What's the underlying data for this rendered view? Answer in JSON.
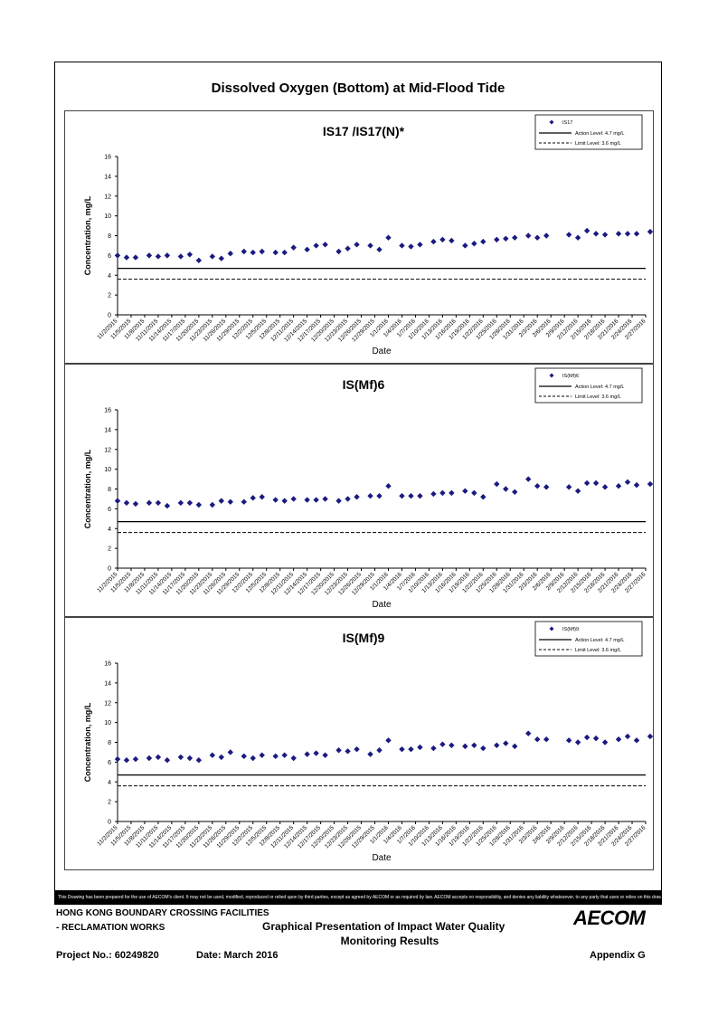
{
  "figure": {
    "title": "Dissolved Oxygen (Bottom) at Mid-Flood Tide",
    "disclaimer": "This Drawing has been prepared for the use of AECOM's client. It may not be used, modified, reproduced or relied upon by third parties, except as agreed by AECOM or as required by law. AECOM accepts no responsibility, and denies any liability whatsoever, to any party that uses or relies on this drawing without AECOM's express written consent."
  },
  "footer": {
    "line1": "HONG KONG BOUNDARY CROSSING FACILITIES",
    "line2": "- RECLAMATION WORKS",
    "heading1": "Graphical Presentation of Impact Water Quality",
    "heading2": "Monitoring Results",
    "project": "Project No.: 60249820",
    "date": "Date: March 2016",
    "appendix": "Appendix G",
    "logo": "AECOM"
  },
  "chart_data": [
    {
      "type": "scatter",
      "title": "IS17 /IS17(N)*",
      "xlabel": "Date",
      "ylabel": "Concentration, mg/L",
      "ylim": [
        0,
        16
      ],
      "yticks": [
        "0",
        "2",
        "4",
        "6",
        "8",
        "10",
        "12",
        "14",
        "16"
      ],
      "xticks": [
        "11/2/2015",
        "11/5/2015",
        "11/8/2015",
        "11/11/2015",
        "11/14/2015",
        "11/17/2015",
        "11/20/2015",
        "11/23/2015",
        "11/26/2015",
        "11/29/2015",
        "12/2/2015",
        "12/5/2015",
        "12/8/2015",
        "12/11/2015",
        "12/14/2015",
        "12/17/2015",
        "12/20/2015",
        "12/23/2015",
        "12/26/2015",
        "12/29/2015",
        "1/1/2016",
        "1/4/2016",
        "1/7/2016",
        "1/10/2016",
        "1/13/2016",
        "1/16/2016",
        "1/19/2016",
        "1/22/2016",
        "1/25/2016",
        "1/28/2016",
        "1/31/2016",
        "2/3/2016",
        "2/6/2016",
        "2/9/2016",
        "2/12/2016",
        "2/15/2016",
        "2/18/2016",
        "2/21/2016",
        "2/24/2016",
        "2/27/2016"
      ],
      "legend": [
        "IS17",
        "Action Level: 4.7 mg/L",
        "Limit Level: 3.6 mg/L"
      ],
      "action_level": 4.7,
      "limit_level": 3.6,
      "series": [
        {
          "name": "IS17",
          "x": [
            "2015-11-02",
            "2015-11-04",
            "2015-11-06",
            "2015-11-09",
            "2015-11-11",
            "2015-11-13",
            "2015-11-16",
            "2015-11-18",
            "2015-11-20",
            "2015-11-23",
            "2015-11-25",
            "2015-11-27",
            "2015-11-30",
            "2015-12-02",
            "2015-12-04",
            "2015-12-07",
            "2015-12-09",
            "2015-12-11",
            "2015-12-14",
            "2015-12-16",
            "2015-12-18",
            "2015-12-21",
            "2015-12-23",
            "2015-12-25",
            "2015-12-28",
            "2015-12-30",
            "2016-01-01",
            "2016-01-04",
            "2016-01-06",
            "2016-01-08",
            "2016-01-11",
            "2016-01-13",
            "2016-01-15",
            "2016-01-18",
            "2016-01-20",
            "2016-01-22",
            "2016-01-25",
            "2016-01-27",
            "2016-01-29",
            "2016-02-01",
            "2016-02-03",
            "2016-02-05",
            "2016-02-10",
            "2016-02-12",
            "2016-02-14",
            "2016-02-16",
            "2016-02-18",
            "2016-02-21",
            "2016-02-23",
            "2016-02-25",
            "2016-02-28"
          ],
          "y": [
            6.0,
            5.8,
            5.8,
            6.0,
            5.9,
            6.0,
            5.9,
            6.1,
            5.5,
            5.9,
            5.7,
            6.2,
            6.4,
            6.3,
            6.4,
            6.3,
            6.3,
            6.8,
            6.6,
            7.0,
            7.1,
            6.4,
            6.7,
            7.1,
            7.0,
            6.6,
            7.8,
            7.0,
            6.9,
            7.1,
            7.4,
            7.6,
            7.5,
            7.0,
            7.2,
            7.4,
            7.6,
            7.7,
            7.8,
            8.0,
            7.8,
            8.0,
            8.1,
            7.8,
            8.5,
            8.2,
            8.1,
            8.2,
            8.2,
            8.2,
            8.4
          ]
        }
      ]
    },
    {
      "type": "scatter",
      "title": "IS(Mf)6",
      "xlabel": "Date",
      "ylabel": "Concentration, mg/L",
      "ylim": [
        0,
        16
      ],
      "yticks": [
        "0",
        "2",
        "4",
        "6",
        "8",
        "10",
        "12",
        "14",
        "16"
      ],
      "xticks": [
        "11/2/2015",
        "11/5/2015",
        "11/8/2015",
        "11/11/2015",
        "11/14/2015",
        "11/17/2015",
        "11/20/2015",
        "11/23/2015",
        "11/26/2015",
        "11/29/2015",
        "12/2/2015",
        "12/5/2015",
        "12/8/2015",
        "12/11/2015",
        "12/14/2015",
        "12/17/2015",
        "12/20/2015",
        "12/23/2015",
        "12/26/2015",
        "12/29/2015",
        "1/1/2016",
        "1/4/2016",
        "1/7/2016",
        "1/10/2016",
        "1/13/2016",
        "1/16/2016",
        "1/19/2016",
        "1/22/2016",
        "1/25/2016",
        "1/28/2016",
        "1/31/2016",
        "2/3/2016",
        "2/6/2016",
        "2/9/2016",
        "2/12/2016",
        "2/15/2016",
        "2/18/2016",
        "2/21/2016",
        "2/24/2016",
        "2/27/2016"
      ],
      "legend": [
        "IS(Mf)6",
        "Action Level: 4.7 mg/L",
        "Limit Level: 3.6 mg/L"
      ],
      "action_level": 4.7,
      "limit_level": 3.6,
      "series": [
        {
          "name": "IS(Mf)6",
          "x": [
            "2015-11-02",
            "2015-11-04",
            "2015-11-06",
            "2015-11-09",
            "2015-11-11",
            "2015-11-13",
            "2015-11-16",
            "2015-11-18",
            "2015-11-20",
            "2015-11-23",
            "2015-11-25",
            "2015-11-27",
            "2015-11-30",
            "2015-12-02",
            "2015-12-04",
            "2015-12-07",
            "2015-12-09",
            "2015-12-11",
            "2015-12-14",
            "2015-12-16",
            "2015-12-18",
            "2015-12-21",
            "2015-12-23",
            "2015-12-25",
            "2015-12-28",
            "2015-12-30",
            "2016-01-01",
            "2016-01-04",
            "2016-01-06",
            "2016-01-08",
            "2016-01-11",
            "2016-01-13",
            "2016-01-15",
            "2016-01-18",
            "2016-01-20",
            "2016-01-22",
            "2016-01-25",
            "2016-01-27",
            "2016-01-29",
            "2016-02-01",
            "2016-02-03",
            "2016-02-05",
            "2016-02-10",
            "2016-02-12",
            "2016-02-14",
            "2016-02-16",
            "2016-02-18",
            "2016-02-21",
            "2016-02-23",
            "2016-02-25",
            "2016-02-28"
          ],
          "y": [
            6.8,
            6.6,
            6.5,
            6.6,
            6.6,
            6.3,
            6.6,
            6.6,
            6.4,
            6.4,
            6.8,
            6.7,
            6.7,
            7.1,
            7.2,
            6.9,
            6.8,
            7.0,
            6.9,
            6.9,
            7.0,
            6.8,
            7.0,
            7.2,
            7.3,
            7.3,
            8.3,
            7.3,
            7.3,
            7.3,
            7.5,
            7.6,
            7.6,
            7.8,
            7.6,
            7.2,
            8.5,
            8.0,
            7.7,
            9.0,
            8.3,
            8.2,
            8.2,
            7.8,
            8.6,
            8.6,
            8.2,
            8.3,
            8.7,
            8.4,
            8.5
          ]
        }
      ]
    },
    {
      "type": "scatter",
      "title": "IS(Mf)9",
      "xlabel": "Date",
      "ylabel": "Concentration, mg/L",
      "ylim": [
        0,
        16
      ],
      "yticks": [
        "0",
        "2",
        "4",
        "6",
        "8",
        "10",
        "12",
        "14",
        "16"
      ],
      "xticks": [
        "11/2/2015",
        "11/5/2015",
        "11/8/2015",
        "11/11/2015",
        "11/14/2015",
        "11/17/2015",
        "11/20/2015",
        "11/23/2015",
        "11/26/2015",
        "11/29/2015",
        "12/2/2015",
        "12/5/2015",
        "12/8/2015",
        "12/11/2015",
        "12/14/2015",
        "12/17/2015",
        "12/20/2015",
        "12/23/2015",
        "12/26/2015",
        "12/29/2015",
        "1/1/2016",
        "1/4/2016",
        "1/7/2016",
        "1/10/2016",
        "1/13/2016",
        "1/16/2016",
        "1/19/2016",
        "1/22/2016",
        "1/25/2016",
        "1/28/2016",
        "1/31/2016",
        "2/3/2016",
        "2/6/2016",
        "2/9/2016",
        "2/12/2016",
        "2/15/2016",
        "2/18/2016",
        "2/21/2016",
        "2/24/2016",
        "2/27/2016"
      ],
      "legend": [
        "IS(Mf)9",
        "Action Level: 4.7 mg/L",
        "Limit Level: 3.6 mg/L"
      ],
      "action_level": 4.7,
      "limit_level": 3.6,
      "series": [
        {
          "name": "IS(Mf)9",
          "x": [
            "2015-11-02",
            "2015-11-04",
            "2015-11-06",
            "2015-11-09",
            "2015-11-11",
            "2015-11-13",
            "2015-11-16",
            "2015-11-18",
            "2015-11-20",
            "2015-11-23",
            "2015-11-25",
            "2015-11-27",
            "2015-11-30",
            "2015-12-02",
            "2015-12-04",
            "2015-12-07",
            "2015-12-09",
            "2015-12-11",
            "2015-12-14",
            "2015-12-16",
            "2015-12-18",
            "2015-12-21",
            "2015-12-23",
            "2015-12-25",
            "2015-12-28",
            "2015-12-30",
            "2016-01-01",
            "2016-01-04",
            "2016-01-06",
            "2016-01-08",
            "2016-01-11",
            "2016-01-13",
            "2016-01-15",
            "2016-01-18",
            "2016-01-20",
            "2016-01-22",
            "2016-01-25",
            "2016-01-27",
            "2016-01-29",
            "2016-02-01",
            "2016-02-03",
            "2016-02-05",
            "2016-02-10",
            "2016-02-12",
            "2016-02-14",
            "2016-02-16",
            "2016-02-18",
            "2016-02-21",
            "2016-02-23",
            "2016-02-25",
            "2016-02-28"
          ],
          "y": [
            6.3,
            6.2,
            6.3,
            6.4,
            6.5,
            6.2,
            6.5,
            6.4,
            6.2,
            6.7,
            6.5,
            7.0,
            6.6,
            6.4,
            6.7,
            6.6,
            6.7,
            6.4,
            6.8,
            6.9,
            6.7,
            7.2,
            7.1,
            7.3,
            6.8,
            7.2,
            8.2,
            7.3,
            7.3,
            7.5,
            7.4,
            7.8,
            7.7,
            7.6,
            7.7,
            7.4,
            7.7,
            7.9,
            7.6,
            8.9,
            8.3,
            8.3,
            8.2,
            8.0,
            8.5,
            8.4,
            8.0,
            8.3,
            8.6,
            8.2,
            8.6
          ]
        }
      ]
    }
  ]
}
